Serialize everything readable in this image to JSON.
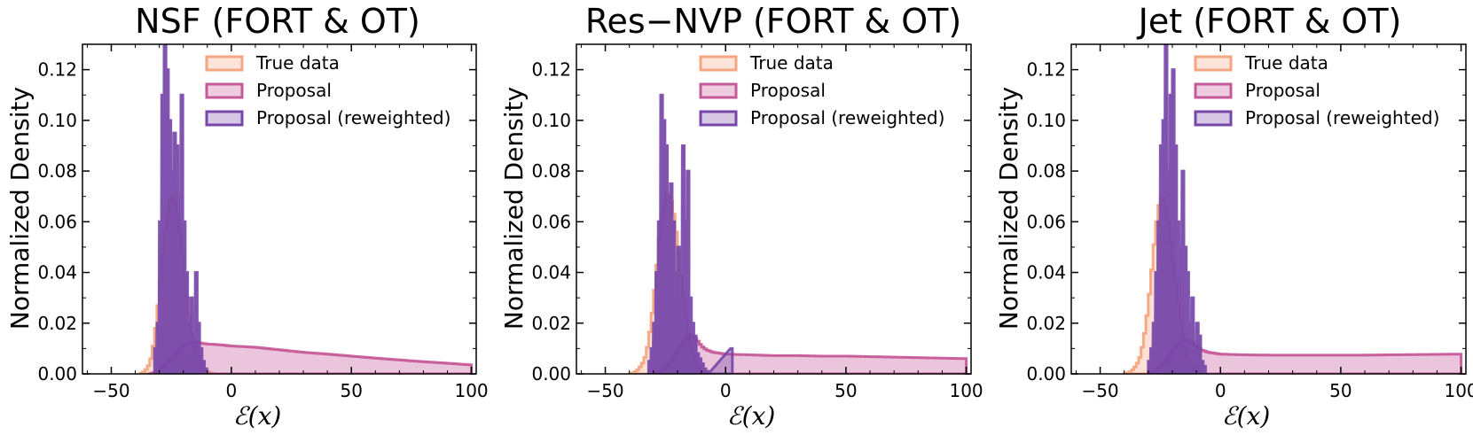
{
  "colors": {
    "true_data": "#f4a582",
    "proposal": "#c65a98",
    "reweighted": "#7646a8"
  },
  "chart_data": [
    {
      "type": "histogram",
      "title": "NSF (FORT & OT)",
      "xlabel": "ℰ(x)",
      "ylabel": "Normalized Density",
      "xlim": [
        -62,
        102
      ],
      "ylim": [
        0,
        0.13
      ],
      "xticks": [
        -50,
        0,
        50,
        100
      ],
      "yticks": [
        0.0,
        0.02,
        0.04,
        0.06,
        0.08,
        0.1,
        0.12
      ],
      "tick_labels_y": [
        "0.00",
        "0.02",
        "0.04",
        "0.06",
        "0.08",
        "0.10",
        "0.12"
      ],
      "tick_labels_x": [
        "−50",
        "0",
        "50",
        "100"
      ],
      "legend": [
        "True data",
        "Proposal",
        "Proposal (reweighted)"
      ],
      "legend_position": "upper-right",
      "series": {
        "true_data": {
          "x": [
            -38,
            -36,
            -34,
            -33,
            -32,
            -31,
            -30,
            -29,
            -28,
            -27,
            -26,
            -25,
            -24,
            -23,
            -22,
            -21,
            -20,
            -19,
            -18,
            -17,
            -16,
            -15,
            -14,
            -13,
            -12,
            -11,
            -10,
            -9,
            -8,
            -6
          ],
          "y": [
            0,
            0.001,
            0.004,
            0.008,
            0.014,
            0.022,
            0.032,
            0.042,
            0.052,
            0.06,
            0.066,
            0.07,
            0.07,
            0.066,
            0.06,
            0.052,
            0.043,
            0.034,
            0.026,
            0.019,
            0.013,
            0.009,
            0.006,
            0.004,
            0.002,
            0.0015,
            0.001,
            0.0005,
            0.0002,
            0
          ]
        },
        "proposal": {
          "x": [
            -34,
            -32,
            -30,
            -28,
            -26,
            -24,
            -22,
            -20,
            -18,
            -16,
            -14,
            -12,
            -10,
            -5,
            0,
            10,
            20,
            30,
            40,
            50,
            60,
            70,
            80,
            90,
            100
          ],
          "y": [
            0,
            0.0005,
            0.0015,
            0.003,
            0.005,
            0.007,
            0.009,
            0.011,
            0.012,
            0.0125,
            0.0125,
            0.012,
            0.0118,
            0.0115,
            0.011,
            0.0105,
            0.0095,
            0.0085,
            0.0078,
            0.007,
            0.0062,
            0.0055,
            0.0048,
            0.0042,
            0.0035
          ]
        },
        "reweighted": {
          "x": [
            -32,
            -31,
            -30,
            -29,
            -28,
            -27,
            -26,
            -25,
            -24,
            -23,
            -22,
            -21,
            -20,
            -19,
            -18,
            -17,
            -16,
            -15,
            -14,
            -13,
            -12,
            -11,
            -10
          ],
          "y": [
            0.01,
            0.02,
            0.06,
            0.11,
            0.13,
            0.12,
            0.1,
            0.08,
            0.095,
            0.09,
            0.07,
            0.11,
            0.06,
            0.04,
            0.02,
            0.03,
            0.015,
            0.04,
            0.02,
            0.01,
            0.005,
            0.002,
            0.0
          ]
        }
      }
    },
    {
      "type": "histogram",
      "title": "Res−NVP (FORT & OT)",
      "xlabel": "ℰ(x)",
      "ylabel": "Normalized Density",
      "xlim": [
        -62,
        102
      ],
      "ylim": [
        0,
        0.13
      ],
      "xticks": [
        -50,
        0,
        50,
        100
      ],
      "yticks": [
        0.0,
        0.02,
        0.04,
        0.06,
        0.08,
        0.1,
        0.12
      ],
      "tick_labels_y": [
        "0.00",
        "0.02",
        "0.04",
        "0.06",
        "0.08",
        "0.10",
        "0.12"
      ],
      "tick_labels_x": [
        "−50",
        "0",
        "50",
        "100"
      ],
      "legend": [
        "True data",
        "Proposal",
        "Proposal (reweighted)"
      ],
      "legend_position": "upper-right",
      "series": {
        "true_data": {
          "x": [
            -40,
            -38,
            -36,
            -34,
            -33,
            -32,
            -31,
            -30,
            -29,
            -28,
            -27,
            -26,
            -25,
            -24,
            -23,
            -22,
            -21,
            -20,
            -19,
            -18,
            -17,
            -16,
            -15,
            -14,
            -13,
            -12,
            -11,
            -10,
            -9,
            -8,
            -6
          ],
          "y": [
            0,
            0.0005,
            0.002,
            0.005,
            0.008,
            0.013,
            0.02,
            0.028,
            0.038,
            0.048,
            0.058,
            0.065,
            0.07,
            0.072,
            0.07,
            0.066,
            0.06,
            0.052,
            0.043,
            0.034,
            0.026,
            0.019,
            0.013,
            0.009,
            0.006,
            0.004,
            0.002,
            0.001,
            0.0005,
            0.0002,
            0
          ]
        },
        "proposal": {
          "x": [
            -30,
            -28,
            -26,
            -24,
            -22,
            -20,
            -18,
            -16,
            -14,
            -12,
            -10,
            -8,
            -5,
            0,
            10,
            20,
            30,
            40,
            50,
            60,
            70,
            80,
            90,
            100
          ],
          "y": [
            0,
            0.0005,
            0.0015,
            0.003,
            0.006,
            0.009,
            0.012,
            0.0145,
            0.015,
            0.0135,
            0.011,
            0.0095,
            0.0085,
            0.0078,
            0.0075,
            0.0072,
            0.0072,
            0.007,
            0.007,
            0.0068,
            0.0066,
            0.0064,
            0.0062,
            0.006
          ]
        },
        "reweighted": {
          "x": [
            -32,
            -31,
            -30,
            -29,
            -28,
            -27,
            -26,
            -25,
            -24,
            -23,
            -22,
            -21,
            -20,
            -19,
            -18,
            -17,
            -16,
            -15,
            -14,
            -13,
            -12,
            -11,
            -10,
            -9,
            -8,
            2
          ],
          "y": [
            0.005,
            0.01,
            0.02,
            0.04,
            0.06,
            0.11,
            0.1,
            0.09,
            0.07,
            0.075,
            0.06,
            0.04,
            0.05,
            0.03,
            0.09,
            0.06,
            0.08,
            0.03,
            0.02,
            0.015,
            0.008,
            0.006,
            0.004,
            0.002,
            0.001,
            0.01
          ]
        }
      }
    },
    {
      "type": "histogram",
      "title": "Jet (FORT & OT)",
      "xlabel": "ℰ(x)",
      "ylabel": "Normalized Density",
      "xlim": [
        -62,
        102
      ],
      "ylim": [
        0,
        0.13
      ],
      "xticks": [
        -50,
        0,
        50,
        100
      ],
      "yticks": [
        0.0,
        0.02,
        0.04,
        0.06,
        0.08,
        0.1,
        0.12
      ],
      "tick_labels_y": [
        "0.00",
        "0.02",
        "0.04",
        "0.06",
        "0.08",
        "0.10",
        "0.12"
      ],
      "tick_labels_x": [
        "−50",
        "0",
        "50",
        "100"
      ],
      "legend": [
        "True data",
        "Proposal",
        "Proposal (reweighted)"
      ],
      "legend_position": "upper-right",
      "series": {
        "true_data": {
          "x": [
            -40,
            -38,
            -36,
            -34,
            -33,
            -32,
            -31,
            -30,
            -29,
            -28,
            -27,
            -26,
            -25,
            -24,
            -23,
            -22,
            -21,
            -20,
            -19,
            -18,
            -17,
            -16,
            -15,
            -14,
            -13,
            -12,
            -11,
            -10,
            -9,
            -8,
            -6
          ],
          "y": [
            0,
            0.0005,
            0.002,
            0.005,
            0.008,
            0.013,
            0.019,
            0.027,
            0.036,
            0.046,
            0.056,
            0.064,
            0.069,
            0.07,
            0.068,
            0.063,
            0.056,
            0.048,
            0.04,
            0.032,
            0.024,
            0.018,
            0.012,
            0.008,
            0.005,
            0.003,
            0.002,
            0.001,
            0.0005,
            0.0002,
            0
          ]
        },
        "proposal": {
          "x": [
            -30,
            -28,
            -26,
            -24,
            -22,
            -20,
            -18,
            -16,
            -14,
            -12,
            -10,
            -8,
            -5,
            0,
            10,
            20,
            30,
            40,
            50,
            60,
            70,
            80,
            90,
            100
          ],
          "y": [
            0,
            0.001,
            0.002,
            0.004,
            0.006,
            0.009,
            0.011,
            0.013,
            0.0135,
            0.0125,
            0.011,
            0.0095,
            0.0085,
            0.0078,
            0.0075,
            0.0074,
            0.0074,
            0.0074,
            0.0074,
            0.0074,
            0.0075,
            0.0076,
            0.0077,
            0.0078
          ]
        },
        "reweighted": {
          "x": [
            -30,
            -29,
            -28,
            -27,
            -26,
            -25,
            -24,
            -23,
            -22,
            -21,
            -20,
            -19,
            -18,
            -17,
            -16,
            -15,
            -14,
            -13,
            -12,
            -11,
            -10,
            -9,
            -8,
            -7,
            -6
          ],
          "y": [
            0.005,
            0.01,
            0.02,
            0.04,
            0.06,
            0.09,
            0.1,
            0.13,
            0.08,
            0.11,
            0.12,
            0.09,
            0.06,
            0.05,
            0.08,
            0.05,
            0.04,
            0.02,
            0.03,
            0.01,
            0.02,
            0.015,
            0.005,
            0.003,
            0.0
          ]
        }
      }
    }
  ]
}
